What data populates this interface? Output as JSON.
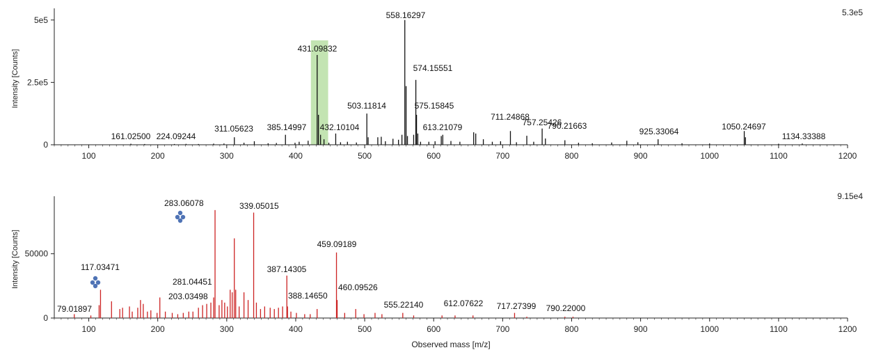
{
  "colors": {
    "top_series": "#111111",
    "bottom_series": "#cc2222",
    "highlight": "#b9dfa4",
    "glyph": "#4f73b5",
    "axis": "#222222"
  },
  "shared_xlabel": "Observed mass [m/z]",
  "chart_data": [
    {
      "type": "bar",
      "panel": "top",
      "title": "",
      "xlabel": "",
      "ylabel": "Intensity [Counts]",
      "max_label": "5.3e5",
      "xlim": [
        50,
        1200
      ],
      "ylim": [
        0,
        530000
      ],
      "xticks": [
        100,
        200,
        300,
        400,
        500,
        600,
        700,
        800,
        900,
        1000,
        1100,
        1200
      ],
      "yticks": [
        {
          "value": 0,
          "label": "0"
        },
        {
          "value": 250000,
          "label": "2.5e5"
        },
        {
          "value": 500000,
          "label": "5e5"
        }
      ],
      "highlight_range": [
        422,
        447
      ],
      "peaks": [
        [
          161.025,
          4000
        ],
        [
          181.0,
          3000
        ],
        [
          224.09244,
          3000
        ],
        [
          241.0,
          3500
        ],
        [
          259.0,
          3000
        ],
        [
          281.0,
          4500
        ],
        [
          296.0,
          5000
        ],
        [
          311.05623,
          30000
        ],
        [
          325.0,
          8000
        ],
        [
          340.0,
          14000
        ],
        [
          360.0,
          6000
        ],
        [
          372.0,
          7000
        ],
        [
          385.14997,
          40000
        ],
        [
          399.0,
          8000
        ],
        [
          405.0,
          12000
        ],
        [
          418.0,
          16000
        ],
        [
          431.09832,
          360000
        ],
        [
          433.0,
          120000
        ],
        [
          436.0,
          40000
        ],
        [
          441.0,
          22000
        ],
        [
          448.0,
          8000
        ],
        [
          458.0,
          45000
        ],
        [
          465.0,
          10000
        ],
        [
          475.0,
          12000
        ],
        [
          488.0,
          9000
        ],
        [
          503.11814,
          125000
        ],
        [
          505.0,
          30000
        ],
        [
          519.0,
          30000
        ],
        [
          524.0,
          32000
        ],
        [
          530.0,
          14000
        ],
        [
          541.0,
          24000
        ],
        [
          549.0,
          20000
        ],
        [
          554.0,
          40000
        ],
        [
          558.16297,
          500000
        ],
        [
          560.0,
          235000
        ],
        [
          562.0,
          35000
        ],
        [
          571.0,
          40000
        ],
        [
          574.15551,
          260000
        ],
        [
          575.15845,
          120000
        ],
        [
          577.0,
          45000
        ],
        [
          581.0,
          12000
        ],
        [
          593.0,
          12000
        ],
        [
          602.0,
          14000
        ],
        [
          611.0,
          35000
        ],
        [
          613.21079,
          40000
        ],
        [
          625.0,
          15000
        ],
        [
          638.0,
          12000
        ],
        [
          658.0,
          50000
        ],
        [
          661.0,
          45000
        ],
        [
          672.0,
          22000
        ],
        [
          685.0,
          12000
        ],
        [
          697.0,
          14000
        ],
        [
          711.24868,
          55000
        ],
        [
          720.0,
          10000
        ],
        [
          735.0,
          36000
        ],
        [
          745.0,
          12000
        ],
        [
          757.25426,
          65000
        ],
        [
          762.0,
          25000
        ],
        [
          790.21663,
          18000
        ],
        [
          810.0,
          8000
        ],
        [
          830.0,
          6000
        ],
        [
          858.0,
          9000
        ],
        [
          880.0,
          16000
        ],
        [
          896.0,
          10000
        ],
        [
          925.33064,
          22000
        ],
        [
          960.0,
          6000
        ],
        [
          1000.0,
          5000
        ],
        [
          1050.24697,
          55000
        ],
        [
          1052.0,
          30000
        ],
        [
          1100.0,
          4000
        ],
        [
          1134.33388,
          5000
        ]
      ],
      "labels": [
        {
          "text": "161.02500",
          "x": 161.025
        },
        {
          "text": "224.09244",
          "x": 224.09244
        },
        {
          "text": "311.05623",
          "x": 311.05623
        },
        {
          "text": "385.14997",
          "x": 385.14997
        },
        {
          "text": "431.09832",
          "x": 431.09832
        },
        {
          "text": "432.10104",
          "x": 432.10104
        },
        {
          "text": "503.11814",
          "x": 503.11814
        },
        {
          "text": "558.16297",
          "x": 558.16297
        },
        {
          "text": "574.15551",
          "x": 574.15551
        },
        {
          "text": "575.15845",
          "x": 575.15845
        },
        {
          "text": "613.21079",
          "x": 613.21079
        },
        {
          "text": "711.24868",
          "x": 711.24868
        },
        {
          "text": "757.25426",
          "x": 757.25426
        },
        {
          "text": "790.21663",
          "x": 790.21663
        },
        {
          "text": "925.33064",
          "x": 925.33064
        },
        {
          "text": "1050.24697",
          "x": 1050.24697
        },
        {
          "text": "1134.33388",
          "x": 1134.33388
        }
      ]
    },
    {
      "type": "bar",
      "panel": "bottom",
      "title": "",
      "xlabel": "Observed mass [m/z]",
      "ylabel": "Intensity [Counts]",
      "max_label": "9.15e4",
      "xlim": [
        50,
        1200
      ],
      "ylim": [
        0,
        91500
      ],
      "xticks": [
        100,
        200,
        300,
        400,
        500,
        600,
        700,
        800,
        900,
        1000,
        1100,
        1200
      ],
      "yticks": [
        {
          "value": 0,
          "label": "0"
        },
        {
          "value": 50000,
          "label": "50000"
        }
      ],
      "peaks": [
        [
          79.01897,
          3000
        ],
        [
          103.0,
          2000
        ],
        [
          115.0,
          10000
        ],
        [
          117.03471,
          22000
        ],
        [
          133.0,
          13000
        ],
        [
          145.0,
          7000
        ],
        [
          149.0,
          8000
        ],
        [
          159.0,
          9000
        ],
        [
          163.0,
          5000
        ],
        [
          171.0,
          8000
        ],
        [
          175.0,
          14000
        ],
        [
          179.0,
          11000
        ],
        [
          185.0,
          5000
        ],
        [
          190.0,
          6000
        ],
        [
          199.0,
          4000
        ],
        [
          203.03498,
          16000
        ],
        [
          211.0,
          5000
        ],
        [
          221.0,
          4000
        ],
        [
          229.0,
          3000
        ],
        [
          237.0,
          4000
        ],
        [
          245.0,
          5000
        ],
        [
          251.0,
          5000
        ],
        [
          259.0,
          8000
        ],
        [
          265.0,
          10000
        ],
        [
          271.0,
          11000
        ],
        [
          277.0,
          12000
        ],
        [
          281.04451,
          16000
        ],
        [
          283.06078,
          84000
        ],
        [
          289.0,
          10000
        ],
        [
          293.0,
          14000
        ],
        [
          297.0,
          12000
        ],
        [
          301.0,
          9000
        ],
        [
          305.0,
          22000
        ],
        [
          308.0,
          20000
        ],
        [
          311.0,
          62000
        ],
        [
          313.0,
          22000
        ],
        [
          318.0,
          9000
        ],
        [
          325.0,
          20000
        ],
        [
          331.0,
          14000
        ],
        [
          339.05015,
          82000
        ],
        [
          343.0,
          12000
        ],
        [
          349.0,
          7000
        ],
        [
          355.0,
          9000
        ],
        [
          363.0,
          8000
        ],
        [
          369.0,
          7000
        ],
        [
          375.0,
          8000
        ],
        [
          381.0,
          9000
        ],
        [
          387.14305,
          33000
        ],
        [
          388.1465,
          9000
        ],
        [
          393.0,
          5000
        ],
        [
          401.0,
          4000
        ],
        [
          413.0,
          3000
        ],
        [
          421.0,
          3000
        ],
        [
          431.0,
          7000
        ],
        [
          459.09189,
          51000
        ],
        [
          460.09526,
          14000
        ],
        [
          471.0,
          4000
        ],
        [
          487.0,
          7000
        ],
        [
          499.0,
          3000
        ],
        [
          515.0,
          4000
        ],
        [
          525.0,
          3000
        ],
        [
          555.2214,
          4000
        ],
        [
          571.0,
          2000
        ],
        [
          612.07622,
          2000
        ],
        [
          631.0,
          2000
        ],
        [
          657.0,
          2000
        ],
        [
          717.27399,
          4000
        ],
        [
          735.0,
          1000
        ],
        [
          790.22,
          1000
        ],
        [
          802.0,
          1000
        ]
      ],
      "labels": [
        {
          "text": "79.01897",
          "x": 79.01897
        },
        {
          "text": "117.03471",
          "x": 117.03471
        },
        {
          "text": "203.03498",
          "x": 203.03498
        },
        {
          "text": "281.04451",
          "x": 281.04451
        },
        {
          "text": "283.06078",
          "x": 283.06078
        },
        {
          "text": "339.05015",
          "x": 339.05015
        },
        {
          "text": "387.14305",
          "x": 387.14305
        },
        {
          "text": "388.14650",
          "x": 388.1465
        },
        {
          "text": "459.09189",
          "x": 459.09189
        },
        {
          "text": "460.09526",
          "x": 460.09526
        },
        {
          "text": "555.22140",
          "x": 555.2214
        },
        {
          "text": "612.07622",
          "x": 612.07622
        },
        {
          "text": "717.27399",
          "x": 717.27399
        },
        {
          "text": "790.22000",
          "x": 790.22
        }
      ],
      "glyphs": [
        "glycan-icon",
        "glycan-icon"
      ]
    }
  ]
}
